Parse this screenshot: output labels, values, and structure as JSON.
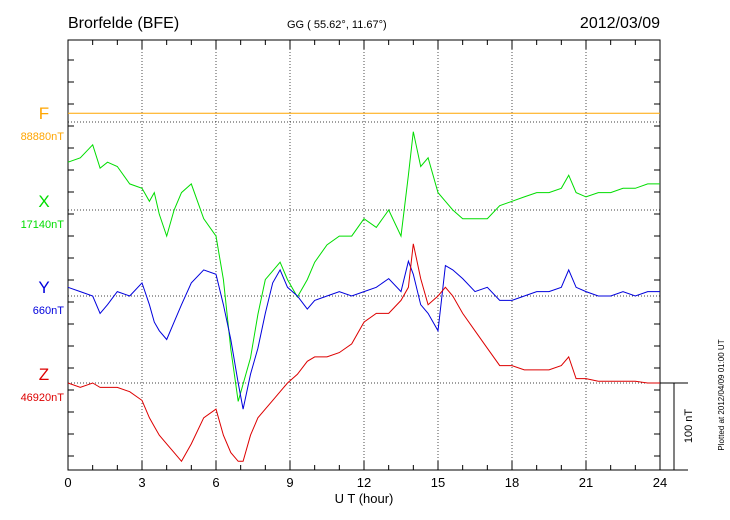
{
  "header": {
    "station": "Brorfelde (BFE)",
    "coords": "GG ( 55.62°,  11.67°)",
    "date": "2012/03/09"
  },
  "side_note": "Plotted at 2012/04/09 01:00 UT",
  "scale_bar_label": "100 nT",
  "colors": {
    "F": "#ffa500",
    "X": "#00dd00",
    "Y": "#0000dd",
    "Z": "#dd0000"
  },
  "chart_data": {
    "type": "line",
    "xlabel": "U T (hour)",
    "ylabel": "",
    "xlim": [
      0,
      24
    ],
    "x_ticks": [
      "0",
      "3",
      "6",
      "9",
      "12",
      "15",
      "18",
      "21",
      "24"
    ],
    "grid": true,
    "scale_nT": 100,
    "series": [
      {
        "name": "F",
        "baseline_label": "88880nT",
        "x": [
          0,
          24
        ],
        "values": [
          10,
          10
        ]
      },
      {
        "name": "X",
        "baseline_label": "17140nT",
        "x": [
          0,
          0.5,
          1,
          1.3,
          1.6,
          2,
          2.5,
          3,
          3.3,
          3.5,
          3.7,
          4,
          4.3,
          4.6,
          5,
          5.5,
          6,
          6.3,
          6.6,
          6.9,
          7.1,
          7.4,
          7.7,
          8,
          8.3,
          8.6,
          8.9,
          9.3,
          9.7,
          10,
          10.5,
          11,
          11.5,
          12,
          12.5,
          13,
          13.5,
          13.8,
          14,
          14.3,
          14.6,
          15,
          15.3,
          15.6,
          16,
          16.5,
          17,
          17.5,
          18,
          18.5,
          19,
          19.5,
          20,
          20.3,
          20.6,
          21,
          21.5,
          22,
          22.5,
          23,
          23.5,
          24
        ],
        "values": [
          55,
          60,
          75,
          48,
          55,
          50,
          30,
          25,
          10,
          20,
          -5,
          -30,
          0,
          20,
          30,
          -10,
          -30,
          -80,
          -160,
          -220,
          -200,
          -170,
          -120,
          -80,
          -70,
          -60,
          -80,
          -100,
          -80,
          -60,
          -40,
          -30,
          -30,
          -10,
          -20,
          0,
          -30,
          40,
          90,
          50,
          60,
          20,
          10,
          0,
          -10,
          -10,
          -10,
          5,
          10,
          15,
          20,
          20,
          25,
          40,
          20,
          15,
          20,
          20,
          25,
          25,
          30,
          30
        ]
      },
      {
        "name": "Y",
        "baseline_label": "660nT",
        "x": [
          0,
          0.5,
          1,
          1.3,
          1.6,
          2,
          2.5,
          3,
          3.3,
          3.5,
          3.7,
          4,
          4.3,
          4.6,
          5,
          5.5,
          6,
          6.3,
          6.6,
          6.9,
          7.1,
          7.4,
          7.7,
          8,
          8.3,
          8.6,
          8.9,
          9.3,
          9.7,
          10,
          10.5,
          11,
          11.5,
          12,
          12.5,
          13,
          13.5,
          13.8,
          14,
          14.3,
          14.6,
          15,
          15.3,
          15.6,
          16,
          16.5,
          17,
          17.5,
          18,
          18.5,
          19,
          19.5,
          20,
          20.3,
          20.6,
          21,
          21.5,
          22,
          22.5,
          23,
          23.5,
          24
        ],
        "values": [
          10,
          5,
          0,
          -20,
          -10,
          5,
          0,
          15,
          -10,
          -30,
          -40,
          -50,
          -30,
          -10,
          15,
          30,
          25,
          -10,
          -50,
          -100,
          -130,
          -90,
          -60,
          -20,
          15,
          30,
          10,
          0,
          -15,
          -5,
          0,
          5,
          0,
          5,
          10,
          20,
          5,
          40,
          25,
          -10,
          -20,
          -40,
          35,
          30,
          20,
          5,
          10,
          -5,
          -5,
          0,
          5,
          5,
          10,
          30,
          10,
          5,
          0,
          0,
          5,
          0,
          5,
          5
        ]
      },
      {
        "name": "Z",
        "baseline_label": "46920nT",
        "x": [
          0,
          0.5,
          1,
          1.3,
          1.6,
          2,
          2.5,
          3,
          3.3,
          3.5,
          3.7,
          4,
          4.3,
          4.6,
          5,
          5.5,
          6,
          6.3,
          6.6,
          6.9,
          7.1,
          7.4,
          7.7,
          8,
          8.3,
          8.6,
          8.9,
          9.3,
          9.7,
          10,
          10.5,
          11,
          11.5,
          12,
          12.5,
          13,
          13.5,
          13.8,
          14,
          14.3,
          14.6,
          15,
          15.3,
          15.6,
          16,
          16.5,
          17,
          17.5,
          18,
          18.5,
          19,
          19.5,
          20,
          20.3,
          20.6,
          21,
          21.5,
          22,
          22.5,
          23,
          23.5,
          24
        ],
        "values": [
          0,
          -5,
          0,
          -5,
          -5,
          -5,
          -10,
          -20,
          -40,
          -50,
          -60,
          -70,
          -80,
          -90,
          -70,
          -40,
          -30,
          -60,
          -80,
          -90,
          -90,
          -60,
          -40,
          -30,
          -20,
          -10,
          0,
          10,
          25,
          30,
          30,
          35,
          45,
          70,
          80,
          80,
          95,
          110,
          160,
          120,
          90,
          100,
          110,
          100,
          80,
          60,
          40,
          20,
          20,
          15,
          15,
          15,
          20,
          30,
          5,
          5,
          2,
          2,
          2,
          2,
          0,
          0
        ]
      }
    ]
  }
}
